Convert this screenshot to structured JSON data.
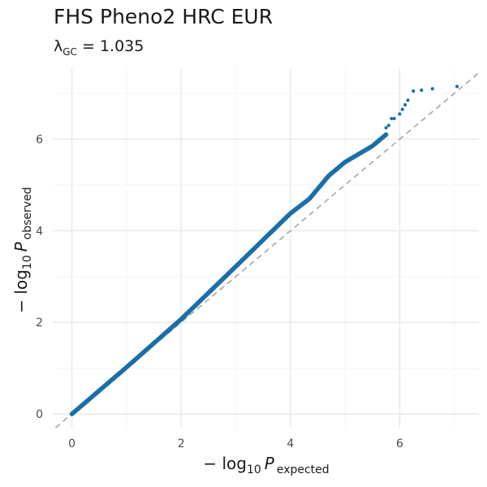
{
  "chart_data": {
    "type": "scatter",
    "title": "FHS Pheno2 HRC EUR",
    "subtitle": {
      "symbol": "λ",
      "subscript": "GC",
      "equals": " = ",
      "value": "1.035"
    },
    "xlabel": {
      "prefix": "− log",
      "base": "10",
      "var": "P",
      "subscript": "expected"
    },
    "ylabel": {
      "prefix": "− log",
      "base": "10",
      "var": "P",
      "subscript": "observed"
    },
    "xlim": [
      -0.35,
      7.45
    ],
    "ylim": [
      -0.3,
      7.55
    ],
    "xticks": [
      0,
      2,
      4,
      6
    ],
    "yticks": [
      0,
      2,
      4,
      6
    ],
    "grid": true,
    "reference_line": "y = x",
    "colors": {
      "points": "#1a6fa8",
      "reference": "#a6a6a6",
      "grid_major": "#ebebeb",
      "grid_minor": "#f5f5f5"
    },
    "curve": [
      [
        0,
        0
      ],
      [
        1,
        1.02
      ],
      [
        2,
        2.07
      ],
      [
        3,
        3.22
      ],
      [
        4,
        4.38
      ],
      [
        4.35,
        4.7
      ],
      [
        4.7,
        5.2
      ],
      [
        5.0,
        5.5
      ],
      [
        5.5,
        5.85
      ],
      [
        5.75,
        6.1
      ]
    ],
    "tail_points": [
      [
        5.75,
        6.25
      ],
      [
        5.8,
        6.3
      ],
      [
        5.85,
        6.45
      ],
      [
        5.9,
        6.45
      ],
      [
        6.0,
        6.55
      ],
      [
        6.05,
        6.65
      ],
      [
        6.1,
        6.75
      ],
      [
        6.15,
        6.85
      ],
      [
        6.25,
        7.05
      ],
      [
        6.4,
        7.07
      ],
      [
        6.6,
        7.1
      ],
      [
        7.05,
        7.15
      ]
    ]
  }
}
